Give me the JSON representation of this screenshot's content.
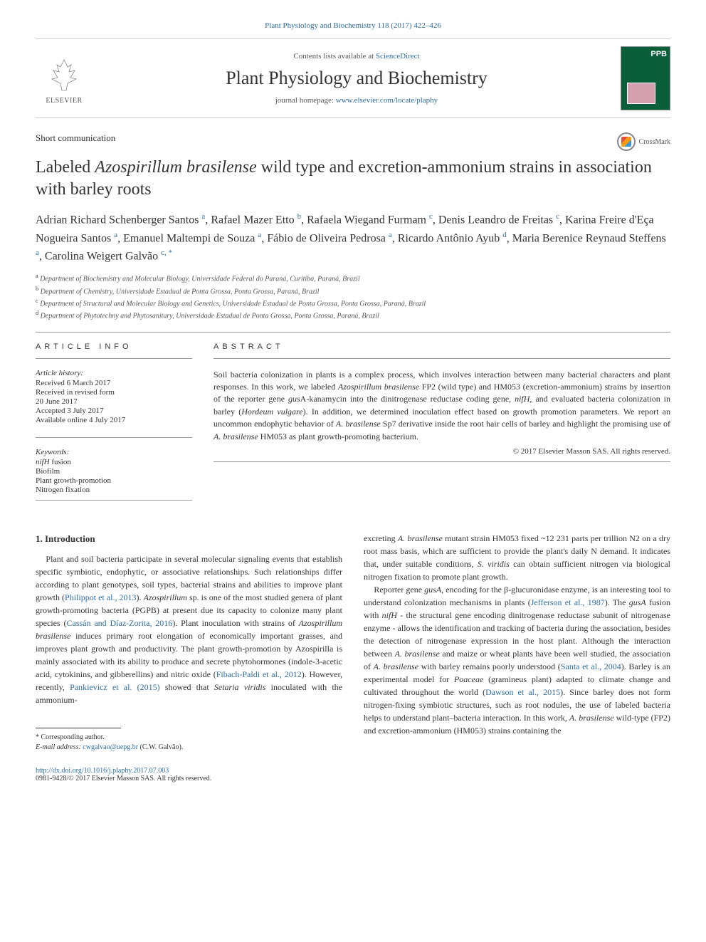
{
  "citation": "Plant Physiology and Biochemistry 118 (2017) 422–426",
  "masthead": {
    "contents_prefix": "Contents lists available at ",
    "contents_link": "ScienceDirect",
    "journal_name": "Plant Physiology and Biochemistry",
    "homepage_prefix": "journal homepage: ",
    "homepage_url": "www.elsevier.com/locate/plaphy",
    "publisher_label": "ELSEVIER",
    "cover_label": "PPB"
  },
  "article_type": "Short communication",
  "crossmark_label": "CrossMark",
  "title_html": "Labeled <em>Azospirillum brasilense</em> wild type and excretion-ammonium strains in association with barley roots",
  "authors_html": "Adrian Richard Schenberger Santos <sup>a</sup>, Rafael Mazer Etto <sup>b</sup>, Rafaela Wiegand Furmam <sup>c</sup>, Denis Leandro de Freitas <sup>c</sup>, Karina Freire d'Eça Nogueira Santos <sup>a</sup>, Emanuel Maltempi de Souza <sup>a</sup>, Fábio de Oliveira Pedrosa <sup>a</sup>, Ricardo Antônio Ayub <sup>d</sup>, Maria Berenice Reynaud Steffens <sup>a</sup>, Carolina Weigert Galvão <sup>c, *</sup>",
  "affiliations": [
    {
      "sup": "a",
      "text": "Department of Biochemistry and Molecular Biology, Universidade Federal do Paraná, Curitiba, Paraná, Brazil"
    },
    {
      "sup": "b",
      "text": "Department of Chemistry, Universidade Estadual de Ponta Grossa, Ponta Grossa, Paraná, Brazil"
    },
    {
      "sup": "c",
      "text": "Department of Structural and Molecular Biology and Genetics, Universidade Estadual de Ponta Grossa, Ponta Grossa, Paraná, Brazil"
    },
    {
      "sup": "d",
      "text": "Department of Phytotechny and Phytosanitary, Universidade Estadual de Ponta Grossa, Ponta Grossa, Paraná, Brazil"
    }
  ],
  "info_heading": "ARTICLE INFO",
  "history": {
    "label": "Article history:",
    "items": [
      "Received 6 March 2017",
      "Received in revised form",
      "20 June 2017",
      "Accepted 3 July 2017",
      "Available online 4 July 2017"
    ]
  },
  "keywords": {
    "label": "Keywords:",
    "items_html": [
      "<em>nifH</em> fusion",
      "Biofilm",
      "Plant growth-promotion",
      "Nitrogen fixation"
    ]
  },
  "abstract_heading": "ABSTRACT",
  "abstract_html": "Soil bacteria colonization in plants is a complex process, which involves interaction between many bacterial characters and plant responses. In this work, we labeled <em>Azospirillum brasilense</em> FP2 (wild type) and HM053 (excretion-ammonium) strains by insertion of the reporter gene <em>gus</em>A-kanamycin into the dinitrogenase reductase coding gene, <em>nifH</em>, and evaluated bacteria colonization in barley (<em>Hordeum vulgare</em>). In addition, we determined inoculation effect based on growth promotion parameters. We report an uncommon endophytic behavior of <em>A. brasilense</em> Sp7 derivative inside the root hair cells of barley and highlight the promising use of <em>A. brasilense</em> HM053 as plant growth-promoting bacterium.",
  "copyright": "© 2017 Elsevier Masson SAS. All rights reserved.",
  "body": {
    "section_heading": "1. Introduction",
    "col1_html": "Plant and soil bacteria participate in several molecular signaling events that establish specific symbiotic, endophytic, or associative relationships. Such relationships differ according to plant genotypes, soil types, bacterial strains and abilities to improve plant growth (<a href='#'>Philippot et al., 2013</a>). <em>Azospirillum</em> sp. is one of the most studied genera of plant growth-promoting bacteria (PGPB) at present due its capacity to colonize many plant species (<a href='#'>Cassán and Díaz-Zorita, 2016</a>). Plant inoculation with strains of <em>Azospirillum brasilense</em> induces primary root elongation of economically important grasses, and improves plant growth and productivity. The plant growth-promotion by Azospirilla is mainly associated with its ability to produce and secrete phytohormones (indole-3-acetic acid, cytokinins, and gibberellins) and nitric oxide (<a href='#'>Fibach-Paldi et al., 2012</a>). However, recently, <a href='#'>Pankievicz et al. (2015)</a> showed that <em>Setaria viridis</em> inoculated with the ammonium-",
    "col2_html": "excreting <em>A. brasilense</em> mutant strain HM053 fixed ~12 231 parts per trillion N2 on a dry root mass basis, which are sufficient to provide the plant's daily N demand. It indicates that, under suitable conditions, <em>S. viridis</em> can obtain sufficient nitrogen via biological nitrogen fixation to promote plant growth.",
    "col2b_html": "Reporter gene <em>gusA</em>, encoding for the β-glucuronidase enzyme, is an interesting tool to understand colonization mechanisms in plants (<a href='#'>Jefferson et al., 1987</a>). The <em>gusA</em> fusion with <em>nifH</em> - the structural gene encoding dinitrogenase reductase subunit of nitrogenase enzyme - allows the identification and tracking of bacteria during the association, besides the detection of nitrogenase expression in the host plant. Although the interaction between <em>A. brasilense</em> and maize or wheat plants have been well studied, the association of <em>A. brasilense</em> with barley remains poorly understood (<a href='#'>Santa et al., 2004</a>). Barley is an experimental model for <em>Poaceae</em> (gramineus plant) adapted to climate change and cultivated throughout the world (<a href='#'>Dawson et al., 2015</a>). Since barley does not form nitrogen-fixing symbiotic structures, such as root nodules, the use of labeled bacteria helps to understand plant–bacteria interaction. In this work, <em>A. brasilense</em> wild-type (FP2) and excretion-ammonium (HM053) strains containing the"
  },
  "footnote": {
    "corr_label": "* Corresponding author.",
    "email_label": "E-mail address: ",
    "email": "cwgalvao@uepg.br",
    "email_suffix": " (C.W. Galvão)."
  },
  "footer": {
    "doi": "http://dx.doi.org/10.1016/j.plaphy.2017.07.003",
    "issn_line": "0981-9428/© 2017 Elsevier Masson SAS. All rights reserved."
  },
  "colors": {
    "link": "#2e6da4",
    "text": "#333333",
    "rule": "#999999",
    "cover_bg": "#0a5f3a"
  }
}
